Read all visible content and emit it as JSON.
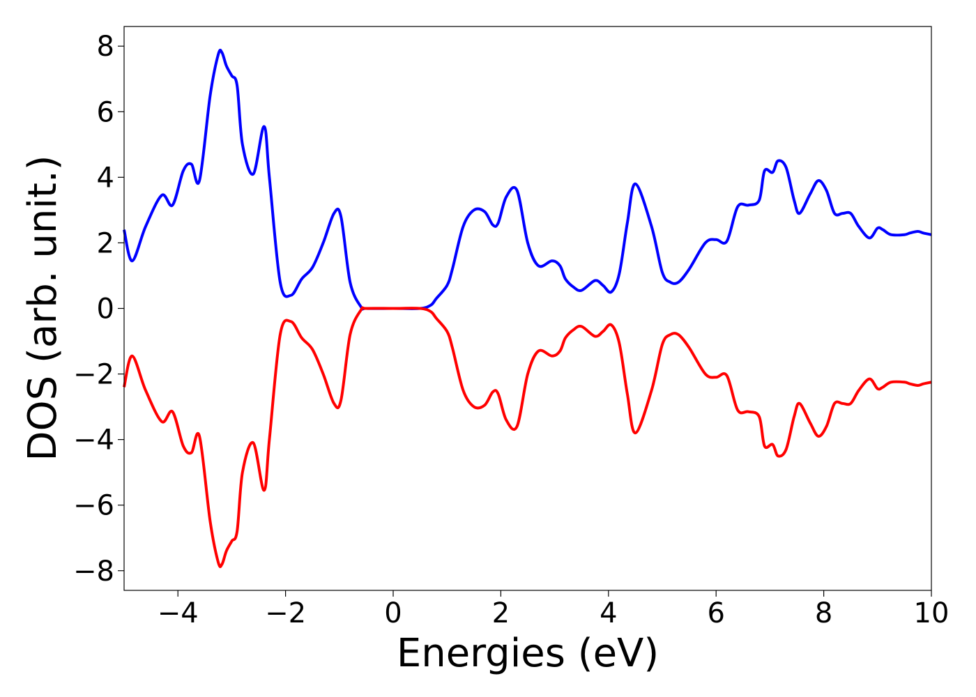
{
  "chart_data": {
    "type": "line",
    "title": "",
    "xlabel": "Energies (eV)",
    "ylabel": "DOS (arb. unit.)",
    "xlim": [
      -5,
      10
    ],
    "ylim": [
      -8.6,
      8.6
    ],
    "grid": false,
    "legend": "none",
    "x_ticks": [
      -4,
      -2,
      0,
      2,
      4,
      6,
      8,
      10
    ],
    "x_tick_labels": [
      "−4",
      "−2",
      "0",
      "2",
      "4",
      "6",
      "8",
      "10"
    ],
    "y_ticks": [
      8,
      6,
      4,
      2,
      0,
      -2,
      -4,
      -6,
      -8
    ],
    "y_tick_labels": [
      "8",
      "6",
      "4",
      "2",
      "0",
      "−2",
      "−4",
      "−6",
      "−8"
    ],
    "series": [
      {
        "color": "#0000ff",
        "x": [
          -5.0,
          -4.85,
          -4.6,
          -4.3,
          -4.1,
          -3.9,
          -3.75,
          -3.6,
          -3.4,
          -3.25,
          -3.18,
          -3.1,
          -3.0,
          -2.9,
          -2.8,
          -2.6,
          -2.4,
          -2.3,
          -2.1,
          -1.9,
          -1.7,
          -1.5,
          -1.3,
          -1.1,
          -0.97,
          -0.8,
          -0.6,
          -0.5,
          0.0,
          0.5,
          0.7,
          0.8,
          1.0,
          1.1,
          1.3,
          1.5,
          1.7,
          1.85,
          1.95,
          2.1,
          2.3,
          2.5,
          2.7,
          2.95,
          3.1,
          3.2,
          3.35,
          3.5,
          3.75,
          3.9,
          4.05,
          4.2,
          4.35,
          4.5,
          4.8,
          5.0,
          5.15,
          5.3,
          5.5,
          5.8,
          6.0,
          6.2,
          6.4,
          6.6,
          6.8,
          6.9,
          7.05,
          7.15,
          7.3,
          7.45,
          7.55,
          7.75,
          7.9,
          8.05,
          8.2,
          8.35,
          8.5,
          8.65,
          8.85,
          9.0,
          9.1,
          9.25,
          9.5,
          9.6,
          9.75,
          9.85,
          10.0
        ],
        "values": [
          2.4,
          1.45,
          2.5,
          3.45,
          3.15,
          4.2,
          4.4,
          3.9,
          6.5,
          7.75,
          7.8,
          7.4,
          7.1,
          6.8,
          5.0,
          4.1,
          5.55,
          4.0,
          0.8,
          0.4,
          0.9,
          1.25,
          2.0,
          2.9,
          2.8,
          0.8,
          0.05,
          0.0,
          0.0,
          0.0,
          0.1,
          0.3,
          0.7,
          1.2,
          2.5,
          3.0,
          2.95,
          2.55,
          2.6,
          3.4,
          3.6,
          2.0,
          1.3,
          1.45,
          1.3,
          0.9,
          0.65,
          0.55,
          0.85,
          0.7,
          0.5,
          1.05,
          2.6,
          3.8,
          2.5,
          1.1,
          0.8,
          0.8,
          1.2,
          2.0,
          2.1,
          2.05,
          3.1,
          3.15,
          3.3,
          4.2,
          4.15,
          4.5,
          4.3,
          3.3,
          2.9,
          3.5,
          3.9,
          3.6,
          2.9,
          2.9,
          2.9,
          2.5,
          2.15,
          2.45,
          2.4,
          2.25,
          2.25,
          2.3,
          2.35,
          2.3,
          2.25
        ]
      },
      {
        "color": "#ff0000",
        "x": [
          -5.0,
          -4.85,
          -4.6,
          -4.3,
          -4.1,
          -3.9,
          -3.75,
          -3.6,
          -3.4,
          -3.25,
          -3.18,
          -3.1,
          -3.0,
          -2.9,
          -2.8,
          -2.6,
          -2.4,
          -2.3,
          -2.1,
          -1.9,
          -1.7,
          -1.5,
          -1.3,
          -1.1,
          -0.97,
          -0.8,
          -0.6,
          -0.5,
          0.0,
          0.5,
          0.7,
          0.8,
          1.0,
          1.1,
          1.3,
          1.5,
          1.7,
          1.85,
          1.95,
          2.1,
          2.3,
          2.5,
          2.7,
          2.95,
          3.1,
          3.2,
          3.35,
          3.5,
          3.75,
          3.9,
          4.05,
          4.2,
          4.35,
          4.5,
          4.8,
          5.0,
          5.15,
          5.3,
          5.5,
          5.8,
          6.0,
          6.2,
          6.4,
          6.6,
          6.8,
          6.9,
          7.05,
          7.15,
          7.3,
          7.45,
          7.55,
          7.75,
          7.9,
          8.05,
          8.2,
          8.35,
          8.5,
          8.65,
          8.85,
          9.0,
          9.1,
          9.25,
          9.5,
          9.6,
          9.75,
          9.85,
          10.0
        ],
        "values": [
          -2.4,
          -1.45,
          -2.5,
          -3.45,
          -3.15,
          -4.2,
          -4.4,
          -3.9,
          -6.5,
          -7.75,
          -7.8,
          -7.4,
          -7.1,
          -6.8,
          -5.0,
          -4.1,
          -5.55,
          -4.0,
          -0.8,
          -0.4,
          -0.9,
          -1.25,
          -2.0,
          -2.9,
          -2.8,
          -0.8,
          -0.05,
          0.0,
          0.0,
          0.0,
          -0.1,
          -0.3,
          -0.7,
          -1.2,
          -2.5,
          -3.0,
          -2.95,
          -2.55,
          -2.6,
          -3.4,
          -3.6,
          -2.0,
          -1.3,
          -1.45,
          -1.3,
          -0.9,
          -0.65,
          -0.55,
          -0.85,
          -0.7,
          -0.5,
          -1.05,
          -2.6,
          -3.8,
          -2.5,
          -1.1,
          -0.8,
          -0.8,
          -1.2,
          -2.0,
          -2.1,
          -2.05,
          -3.1,
          -3.15,
          -3.3,
          -4.2,
          -4.15,
          -4.5,
          -4.3,
          -3.3,
          -2.9,
          -3.5,
          -3.9,
          -3.6,
          -2.9,
          -2.9,
          -2.9,
          -2.5,
          -2.15,
          -2.45,
          -2.4,
          -2.25,
          -2.25,
          -2.3,
          -2.35,
          -2.3,
          -2.25
        ]
      }
    ]
  }
}
